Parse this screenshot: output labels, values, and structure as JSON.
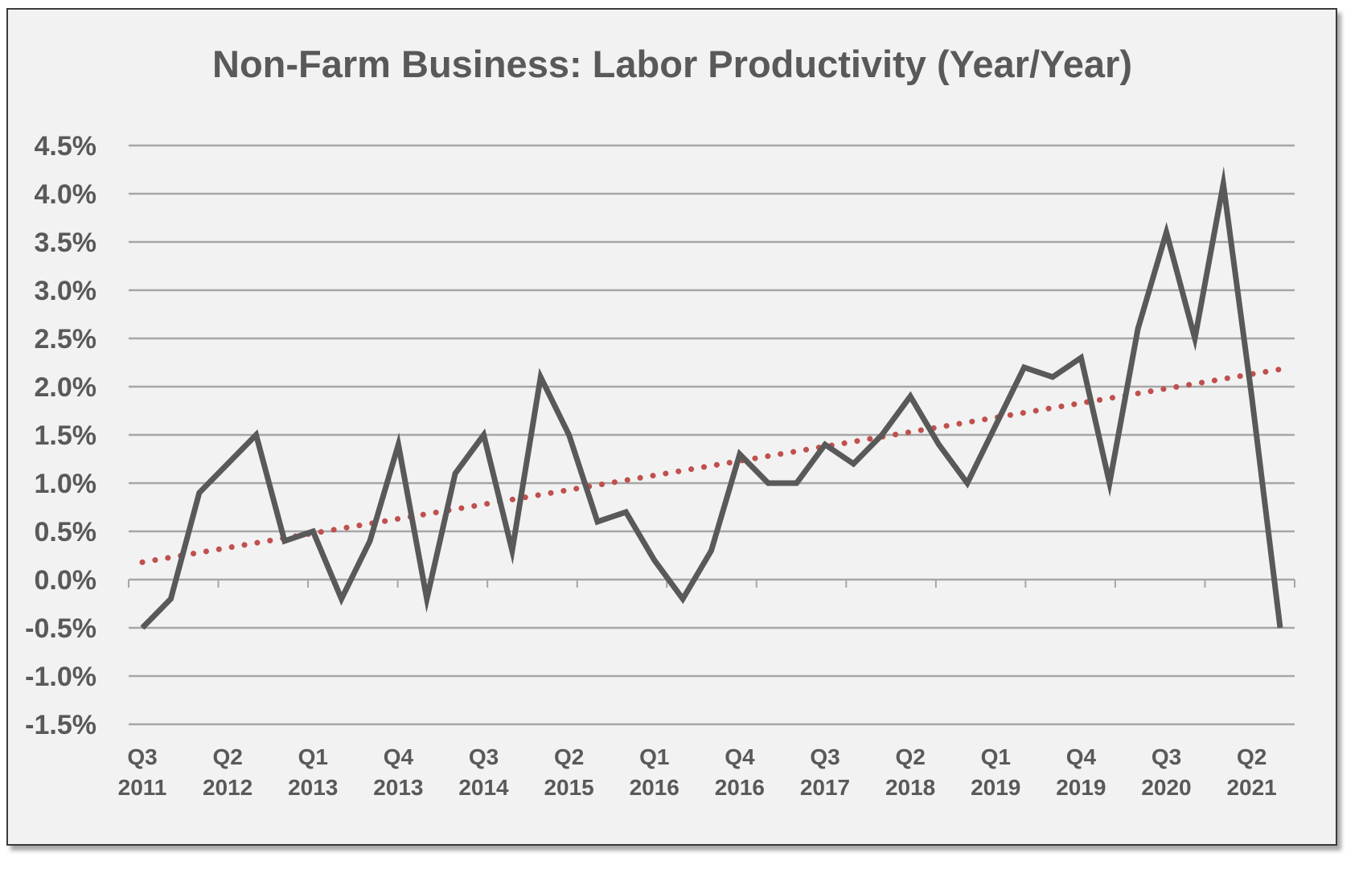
{
  "chart_data": {
    "type": "line",
    "title": "Non-Farm Business: Labor Productivity (Year/Year)",
    "xlabel": "",
    "ylabel": "",
    "ylim": [
      -1.5,
      4.5
    ],
    "y_ticks": [
      "4.5%",
      "4.0%",
      "3.5%",
      "3.0%",
      "2.5%",
      "2.0%",
      "1.5%",
      "1.0%",
      "0.5%",
      "0.0%",
      "-0.5%",
      "-1.0%",
      "-1.5%"
    ],
    "y_tick_values": [
      4.5,
      4.0,
      3.5,
      3.0,
      2.5,
      2.0,
      1.5,
      1.0,
      0.5,
      0.0,
      -0.5,
      -1.0,
      -1.5
    ],
    "x_tick_labels": [
      {
        "quarter": "Q3",
        "year": "2011",
        "index": 0
      },
      {
        "quarter": "Q2",
        "year": "2012",
        "index": 3
      },
      {
        "quarter": "Q1",
        "year": "2013",
        "index": 6
      },
      {
        "quarter": "Q4",
        "year": "2013",
        "index": 9
      },
      {
        "quarter": "Q3",
        "year": "2014",
        "index": 12
      },
      {
        "quarter": "Q2",
        "year": "2015",
        "index": 15
      },
      {
        "quarter": "Q1",
        "year": "2016",
        "index": 18
      },
      {
        "quarter": "Q4",
        "year": "2016",
        "index": 21
      },
      {
        "quarter": "Q3",
        "year": "2017",
        "index": 24
      },
      {
        "quarter": "Q2",
        "year": "2018",
        "index": 27
      },
      {
        "quarter": "Q1",
        "year": "2019",
        "index": 30
      },
      {
        "quarter": "Q4",
        "year": "2019",
        "index": 33
      },
      {
        "quarter": "Q3",
        "year": "2020",
        "index": 36
      },
      {
        "quarter": "Q2",
        "year": "2021",
        "index": 39
      }
    ],
    "x": [
      "Q3 2011",
      "Q4 2011",
      "Q1 2012",
      "Q2 2012",
      "Q3 2012",
      "Q4 2012",
      "Q1 2013",
      "Q2 2013",
      "Q3 2013",
      "Q4 2013",
      "Q1 2014",
      "Q2 2014",
      "Q3 2014",
      "Q4 2014",
      "Q1 2015",
      "Q2 2015",
      "Q3 2015",
      "Q4 2015",
      "Q1 2016",
      "Q2 2016",
      "Q3 2016",
      "Q4 2016",
      "Q1 2017",
      "Q2 2017",
      "Q3 2017",
      "Q4 2017",
      "Q1 2018",
      "Q2 2018",
      "Q3 2018",
      "Q4 2018",
      "Q1 2019",
      "Q2 2019",
      "Q3 2019",
      "Q4 2019",
      "Q1 2020",
      "Q2 2020",
      "Q3 2020",
      "Q4 2020",
      "Q1 2021",
      "Q2 2021",
      "Q3 2021"
    ],
    "series": [
      {
        "values": [
          -0.5,
          -0.2,
          0.9,
          1.2,
          1.5,
          0.4,
          0.5,
          -0.2,
          0.4,
          1.4,
          -0.2,
          1.1,
          1.5,
          0.3,
          2.1,
          1.5,
          0.6,
          0.7,
          0.2,
          -0.2,
          0.3,
          1.3,
          1.0,
          1.0,
          1.4,
          1.2,
          1.5,
          1.9,
          1.4,
          1.0,
          1.6,
          2.2,
          2.1,
          2.3,
          1.0,
          2.6,
          3.6,
          2.5,
          4.1,
          1.9,
          -0.5
        ],
        "color": "#595959",
        "style": "solid"
      }
    ],
    "trendline": {
      "type": "linear",
      "start": 0.18,
      "end": 2.18,
      "color": "#c0504d",
      "style": "dotted"
    },
    "grid": true,
    "legend": "none"
  }
}
